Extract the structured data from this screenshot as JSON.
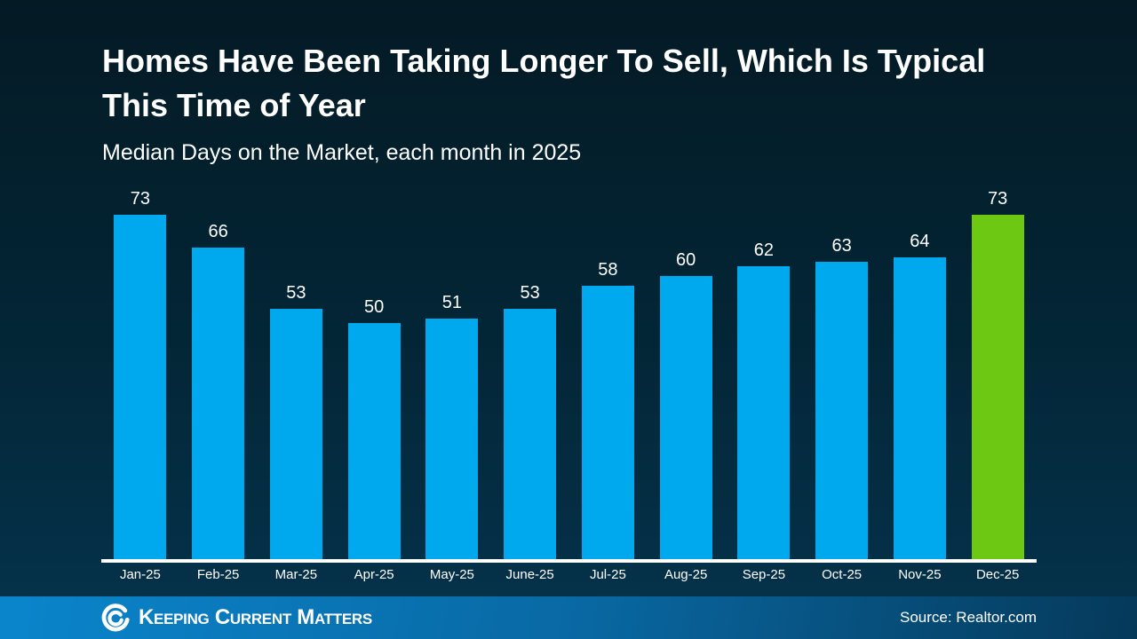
{
  "chart_data": {
    "type": "bar",
    "title": "Homes Have Been Taking Longer To Sell, Which Is Typical This Time of Year",
    "subtitle": "Median Days on the Market, each month in 2025",
    "categories": [
      "Jan-25",
      "Feb-25",
      "Mar-25",
      "Apr-25",
      "May-25",
      "June-25",
      "Jul-25",
      "Aug-25",
      "Sep-25",
      "Oct-25",
      "Nov-25",
      "Dec-25"
    ],
    "values": [
      73,
      66,
      53,
      50,
      51,
      53,
      58,
      60,
      62,
      63,
      64,
      73
    ],
    "unit": "days",
    "xlabel": "",
    "ylabel": "",
    "ylim": [
      0,
      73
    ],
    "grid": false,
    "legend": "none",
    "value_labels": true,
    "bar_color": "#00a9ee",
    "highlight_index": 11,
    "highlight_color": "#6cc813",
    "axis_color": "#ffffff"
  },
  "footer": {
    "brand": "Keeping Current Matters",
    "logo_icon": "kcm-swirl-icon",
    "source": "Source: Realtor.com"
  },
  "colors": {
    "background_top": "#041a25",
    "background_bottom": "#05334d",
    "footer_left": "#0a85cc",
    "footer_right": "#05395a",
    "text": "#ffffff"
  }
}
